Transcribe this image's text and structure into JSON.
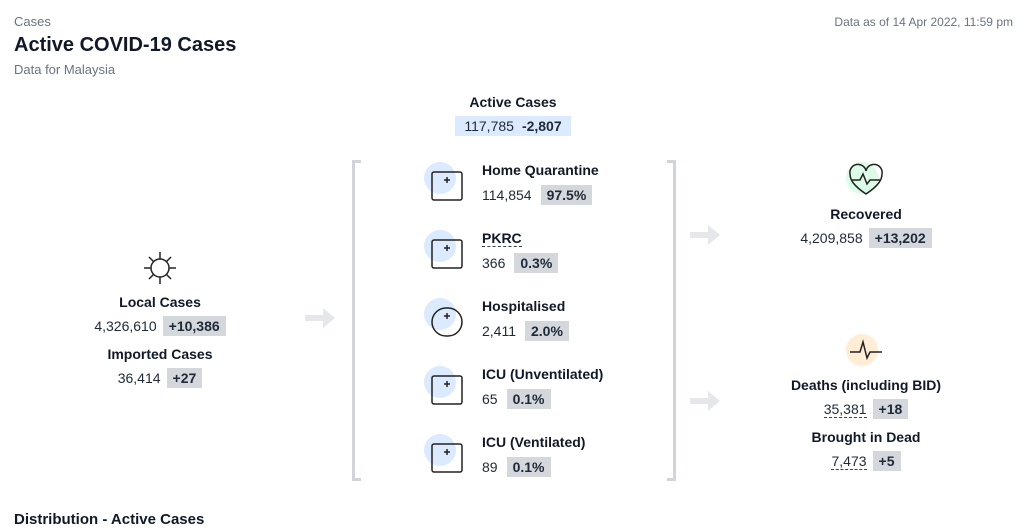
{
  "header": {
    "section": "Cases",
    "title": "Active COVID-19 Cases",
    "subtitle": "Data for Malaysia",
    "timestamp": "Data as of 14 Apr 2022, 11:59 pm"
  },
  "active": {
    "label": "Active Cases",
    "value": "117,785",
    "change": "-2,807"
  },
  "sources": [
    {
      "label": "Local Cases",
      "value": "4,326,610",
      "change": "+10,386"
    },
    {
      "label": "Imported Cases",
      "value": "36,414",
      "change": "+27"
    }
  ],
  "breakdown": [
    {
      "label": "Home Quarantine",
      "value": "114,854",
      "share": "97.5%"
    },
    {
      "label": "PKRC",
      "value": "366",
      "share": "0.3%"
    },
    {
      "label": "Hospitalised",
      "value": "2,411",
      "share": "2.0%"
    },
    {
      "label": "ICU (Unventilated)",
      "value": "65",
      "share": "0.1%"
    },
    {
      "label": "ICU (Ventilated)",
      "value": "89",
      "share": "0.1%"
    }
  ],
  "outcomes": [
    {
      "label": "Recovered",
      "value": "4,209,858",
      "change": "+13,202"
    },
    {
      "label": "Deaths (including BID)",
      "value": "35,381",
      "change": "+18"
    },
    {
      "label": "Brought in Dead",
      "value": "7,473",
      "change": "+5"
    }
  ],
  "footer": {
    "heading": "Distribution - Active Cases"
  }
}
